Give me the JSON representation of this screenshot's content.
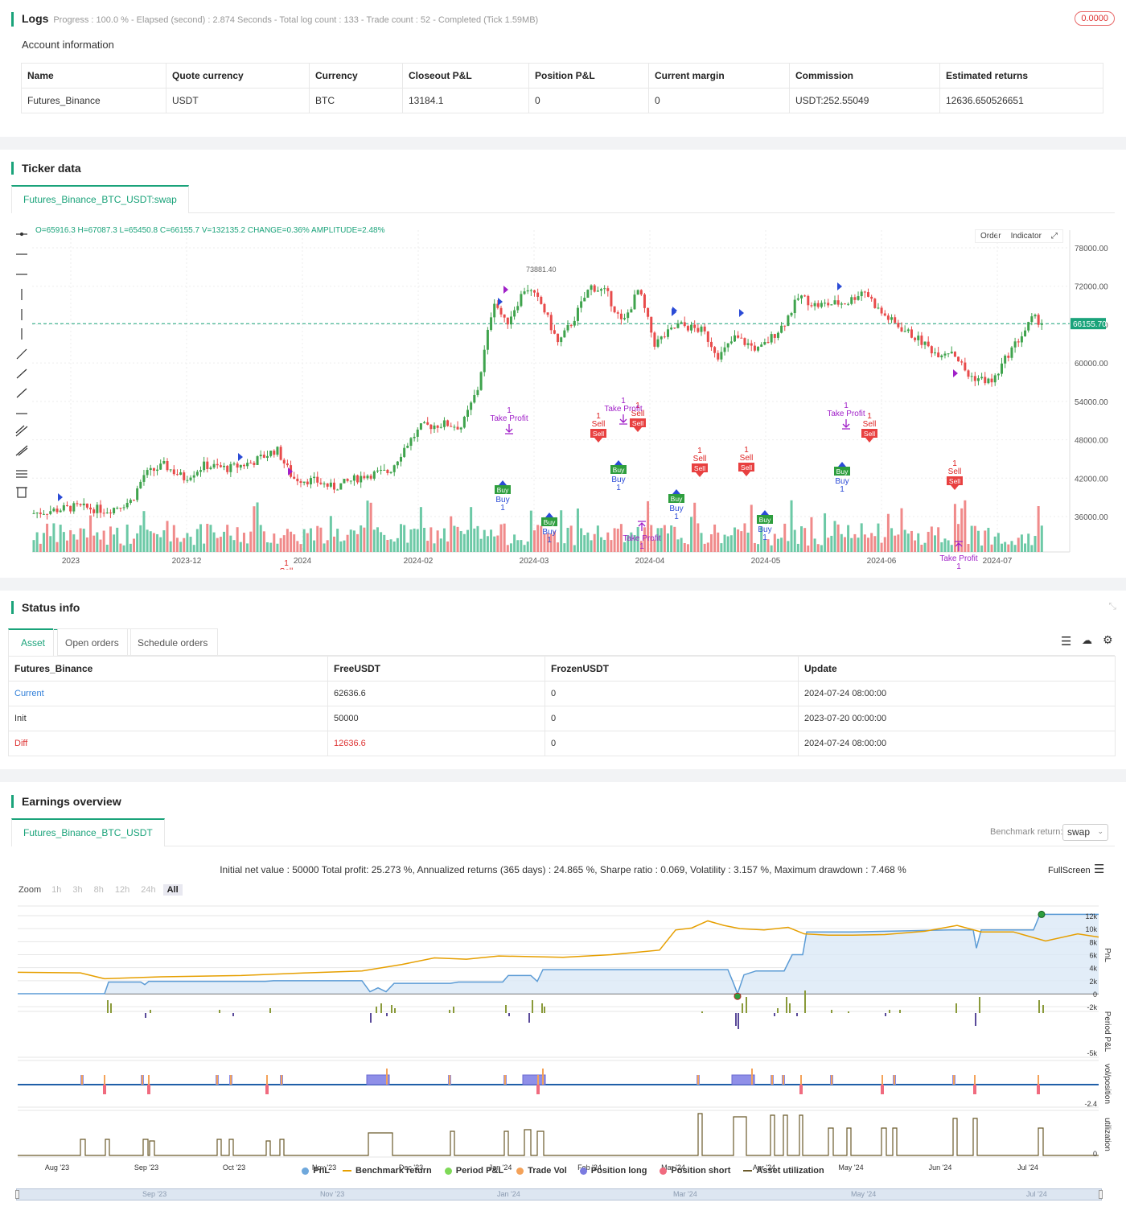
{
  "logs": {
    "title": "Logs",
    "progress_text": "Progress : 100.0 % - Elapsed (second) : 2.874  Seconds - Total log count : 133 - Trade count : 52 - Completed (Tick 1.59MB)",
    "badge": "0.0000",
    "account_title": "Account information",
    "headers": [
      "Name",
      "Quote currency",
      "Currency",
      "Closeout P&L",
      "Position P&L",
      "Current margin",
      "Commission",
      "Estimated returns"
    ],
    "row": [
      "Futures_Binance",
      "USDT",
      "BTC",
      "13184.1",
      "0",
      "0",
      "USDT:252.55049",
      "12636.650526651"
    ]
  },
  "ticker": {
    "title": "Ticker data",
    "tab": "Futures_Binance_BTC_USDT:swap",
    "ohlc": "O=65916.3 H=67087.3 L=65450.8 C=66155.7 V=132135.2 CHANGE=0.36% AMPLITUDE=2.48%",
    "order_btn": "Order",
    "indicator_btn": "Indicator",
    "price_tag": "66155.70",
    "high_label": "73881.40",
    "y_ticks": [
      "78000.00",
      "72000.00",
      "66000.00",
      "60000.00",
      "54000.00",
      "48000.00",
      "42000.00",
      "36000.00"
    ],
    "x_ticks": [
      "2023",
      "2023-12",
      "2024",
      "2024-02",
      "2024-03",
      "2024-04",
      "2024-05",
      "2024-06",
      "2024-07"
    ],
    "label_buy": "Buy",
    "label_sell": "Sell",
    "label_tp": "Take Profit",
    "label_one": "1"
  },
  "status": {
    "title": "Status info",
    "tabs": [
      "Asset",
      "Open orders",
      "Schedule orders"
    ],
    "headers": [
      "Futures_Binance",
      "FreeUSDT",
      "FrozenUSDT",
      "Update"
    ],
    "rows": [
      [
        "Current",
        "62636.6",
        "0",
        "2024-07-24 08:00:00"
      ],
      [
        "Init",
        "50000",
        "0",
        "2023-07-20 00:00:00"
      ],
      [
        "Diff",
        "12636.6",
        "0",
        "2024-07-24 08:00:00"
      ]
    ]
  },
  "earnings": {
    "title": "Earnings overview",
    "tab": "Futures_Binance_BTC_USDT",
    "benchmark_label": "Benchmark return:",
    "benchmark_value": "swap",
    "summary": "Initial net value : 50000 Total profit: 25.273 %, Annualized returns (365 days) : 24.865 %, Sharpe ratio : 0.069, Volatility : 3.157 %, Maximum drawdown : 7.468 %",
    "fullscreen": "FullScreen",
    "zoom_label": "Zoom",
    "zoom_opts": [
      "1h",
      "3h",
      "8h",
      "12h",
      "24h",
      "All"
    ],
    "pnl_ticks": [
      "12k",
      "10k",
      "8k",
      "6k",
      "4k",
      "2k",
      "0",
      "-2k"
    ],
    "period_tick": "-5k",
    "pos_tick": "-2.4",
    "util_tick": "0",
    "axis_pnl": "PnL",
    "axis_period": "Period P&L",
    "axis_pos": "vol/position",
    "axis_util": "utilization",
    "x_ticks": [
      "Aug '23",
      "Sep '23",
      "Oct '23",
      "Nov '23",
      "Dec '23",
      "Jan '24",
      "Feb '24",
      "Mar '24",
      "Apr '24",
      "May '24",
      "Jun '24",
      "Jul '24"
    ],
    "nav_ticks": [
      "Sep '23",
      "Nov '23",
      "Jan '24",
      "Mar '24",
      "May '24",
      "Jul '24"
    ],
    "legend": [
      {
        "name": "PnL",
        "color": "#6fa8dc"
      },
      {
        "name": "Benchmark return",
        "color": "#e69f00"
      },
      {
        "name": "Period P&L",
        "color": "#7ed957"
      },
      {
        "name": "Trade Vol",
        "color": "#f4a259"
      },
      {
        "name": "Position long",
        "color": "#7b7be0"
      },
      {
        "name": "Position short",
        "color": "#f06b7f"
      },
      {
        "name": "Asset utilization",
        "color": "#6b5a2b"
      }
    ]
  }
}
